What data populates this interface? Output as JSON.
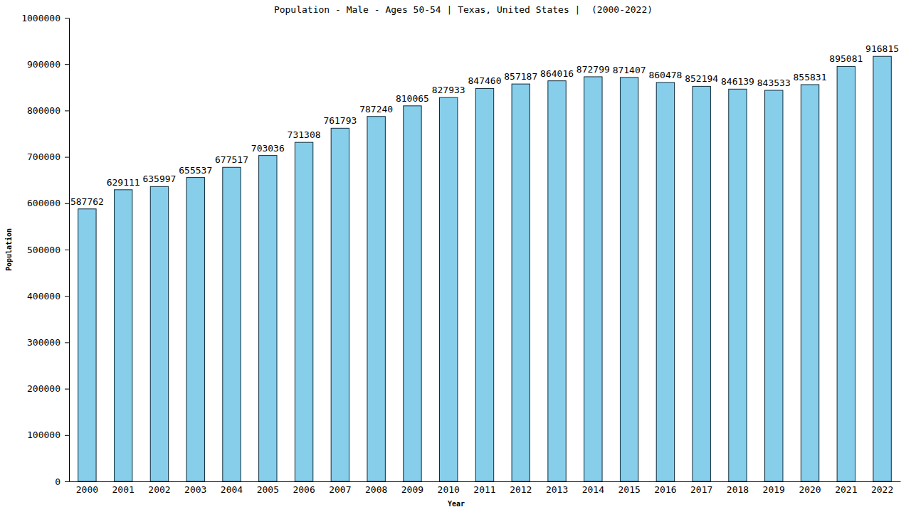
{
  "chart_data": {
    "type": "bar",
    "title": "Population - Male - Ages 50-54 | Texas, United States |  (2000-2022)",
    "x_label": "Year",
    "y_label": "Population",
    "categories": [
      "2000",
      "2001",
      "2002",
      "2003",
      "2004",
      "2005",
      "2006",
      "2007",
      "2008",
      "2009",
      "2010",
      "2011",
      "2012",
      "2013",
      "2014",
      "2015",
      "2016",
      "2017",
      "2018",
      "2019",
      "2020",
      "2021",
      "2022"
    ],
    "values": [
      587762,
      629111,
      635997,
      655537,
      677517,
      703036,
      731308,
      761793,
      787240,
      810065,
      827933,
      847460,
      857187,
      864016,
      872799,
      871407,
      860478,
      852194,
      846139,
      843533,
      855831,
      895081,
      916815
    ],
    "color": "#87ceeb",
    "ylim": [
      0,
      1000000
    ],
    "yticks": [
      0,
      100000,
      200000,
      300000,
      400000,
      500000,
      600000,
      700000,
      800000,
      900000,
      1000000
    ],
    "grid": false,
    "data_labels": true
  }
}
